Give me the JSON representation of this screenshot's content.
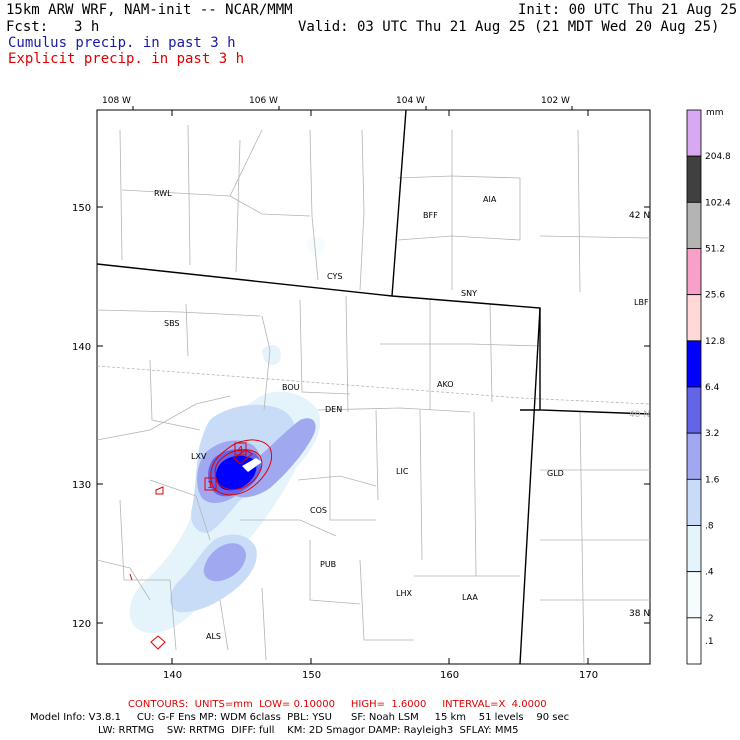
{
  "header": {
    "title": "15km ARW WRF, NAM-init -- NCAR/MMM",
    "init": "Init: 00 UTC Thu 21 Aug 25",
    "fcst_label": "Fcst:",
    "fcst_value": "3 h",
    "valid": "Valid: 03 UTC Thu 21 Aug 25 (21 MDT Wed 20 Aug 25)",
    "field1": "Cumulus precip. in past 3 h",
    "field2": "Explicit precip. in past 3 h"
  },
  "colors": {
    "field1": "#1a1aa6",
    "field2": "#e00000",
    "state_line": "#000000",
    "county_line": "#b4b4b4",
    "contour": "#e00000"
  },
  "map": {
    "lon_labels": [
      "108 W",
      "106 W",
      "104 W",
      "102 W"
    ],
    "lat_labels": [
      "42 N",
      "40 N",
      "38 N"
    ],
    "x_ticks": [
      "140",
      "150",
      "160",
      "170"
    ],
    "y_ticks": [
      "150",
      "140",
      "130",
      "120"
    ],
    "stations": [
      "RWL",
      "BFF",
      "AIA",
      "CYS",
      "SNY",
      "LBF",
      "SBS",
      "BOU",
      "AKO",
      "DEN",
      "LXV",
      "LIC",
      "GLD",
      "COS",
      "PUB",
      "LHX",
      "LAA",
      "ALS"
    ],
    "contour_labels": [
      "4",
      "1"
    ]
  },
  "legend": {
    "unit": "mm",
    "values": [
      "204.8",
      "102.4",
      "51.2",
      "25.6",
      "12.8",
      "6.4",
      "3.2",
      "1.6",
      ".8",
      ".4",
      ".2",
      ".1"
    ],
    "colors": [
      "#d8a8f0",
      "#404040",
      "#b4b4b4",
      "#f8a0c8",
      "#ffd8d8",
      "#0000ff",
      "#6464e8",
      "#a0a8f0",
      "#c8dcf8",
      "#e4f4fa",
      "#f4fcfe",
      "#ffffff"
    ]
  },
  "footer": {
    "contours": "CONTOURS:  UNITS=mm  LOW= 0.10000     HIGH=  1.6000     INTERVAL=X  4.0000",
    "model_info": "Model Info: V3.8.1     CU: G-F Ens MP: WDM 6class  PBL: YSU      SF: Noah LSM     15 km    51 levels    90 sec",
    "model_info2": "LW: RRTMG    SW: RRTMG  DIFF: full    KM: 2D Smagor DAMP: Rayleigh3  SFLAY: MM5"
  }
}
